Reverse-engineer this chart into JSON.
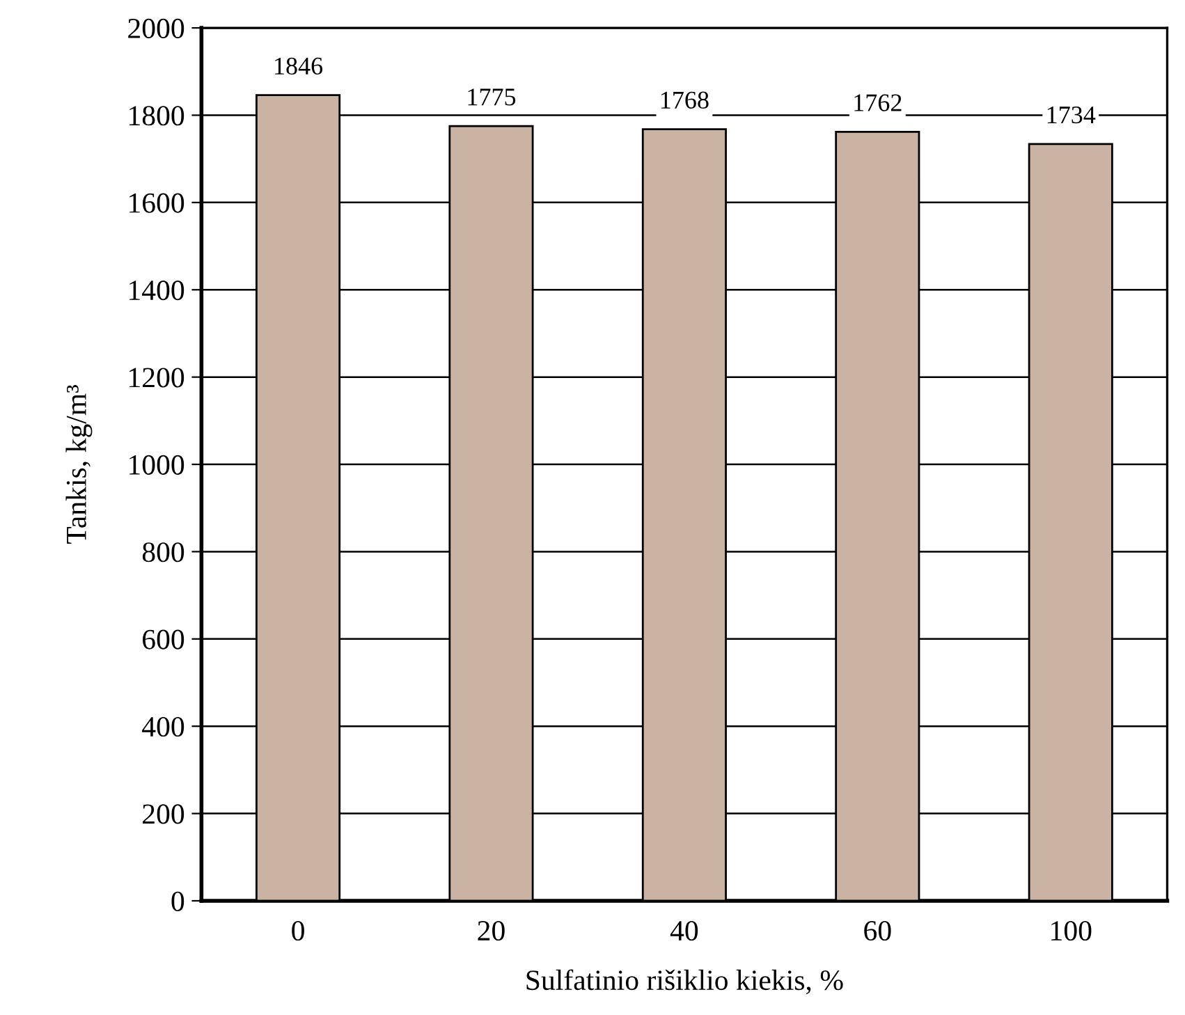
{
  "chart_data": {
    "type": "bar",
    "categories": [
      "0",
      "20",
      "40",
      "60",
      "100"
    ],
    "values": [
      1846,
      1775,
      1768,
      1762,
      1734
    ],
    "color": "#cbb3a4",
    "data_labels": true,
    "xlabel": "Sulfatinio rišiklio kiekis, %",
    "ylabel": "Tankis, kg/m³",
    "ylim": [
      0,
      2000
    ],
    "yticks": [
      0,
      200,
      400,
      600,
      800,
      1000,
      1200,
      1400,
      1600,
      1800,
      2000
    ],
    "grid": "y"
  }
}
